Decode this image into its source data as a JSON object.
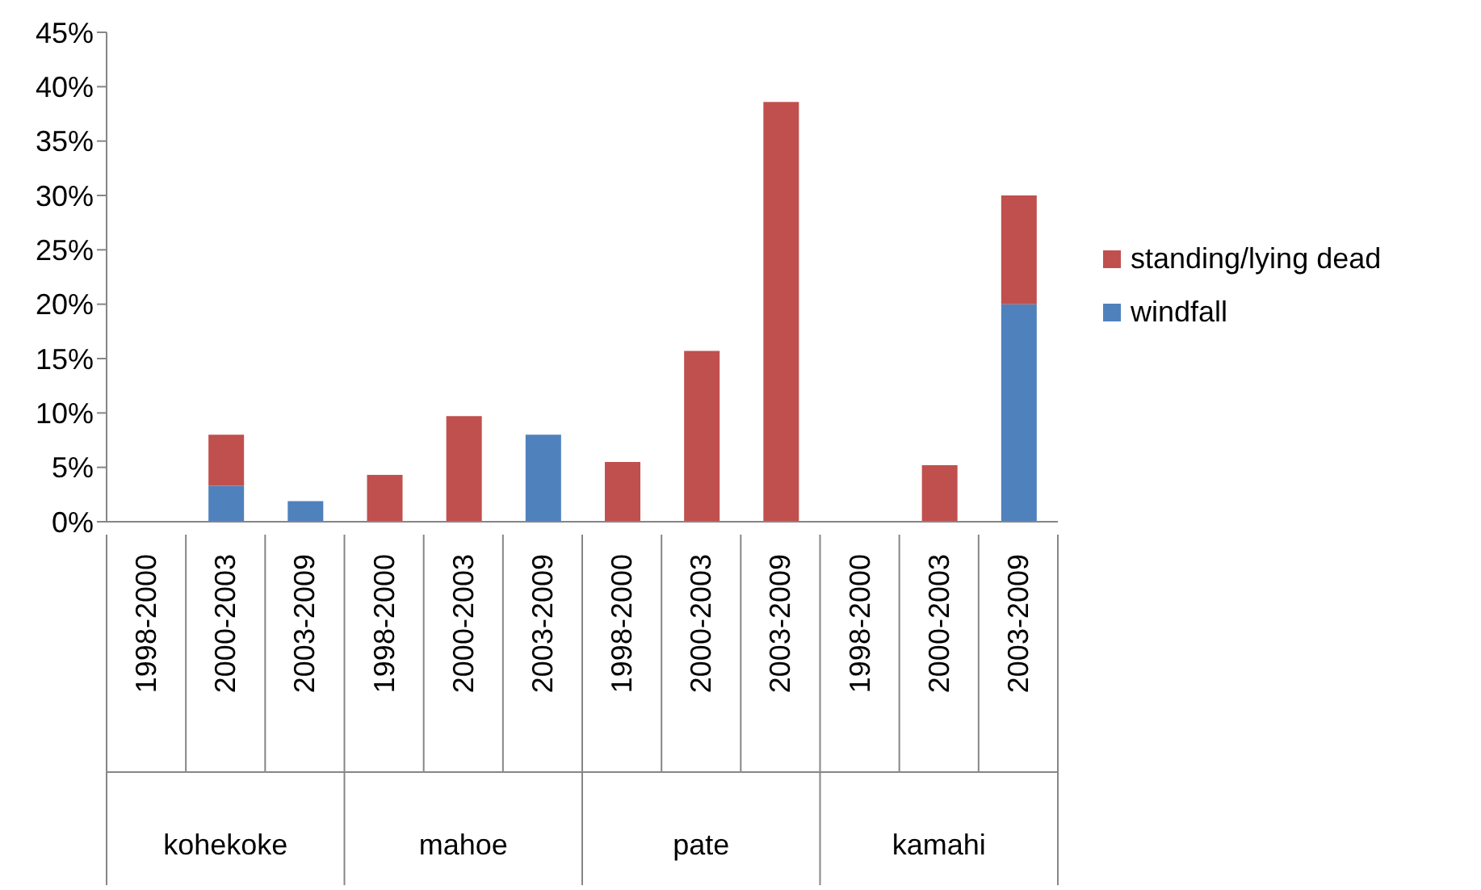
{
  "chart_data": {
    "type": "bar",
    "stacked": true,
    "categories": [
      "1998-2000",
      "2000-2003",
      "2003-2009",
      "1998-2000",
      "2000-2003",
      "2003-2009",
      "1998-2000",
      "2000-2003",
      "2003-2009",
      "1998-2000",
      "2000-2003",
      "2003-2009"
    ],
    "annotations": [
      "kohekoke",
      "mahoe",
      "pate",
      "kamahi"
    ],
    "series": [
      {
        "name": "windfall",
        "color": "#4f81bd",
        "values": [
          0,
          3.3,
          1.9,
          0,
          0,
          8.0,
          0,
          0,
          0,
          0,
          0,
          20.0
        ]
      },
      {
        "name": "standing/lying dead",
        "color": "#c0504d",
        "values": [
          0,
          4.7,
          0,
          4.3,
          9.7,
          0,
          5.5,
          15.7,
          38.6,
          0,
          5.2,
          10.0
        ]
      }
    ],
    "ylim": [
      0,
      45
    ],
    "yticks": [
      {
        "value": 0,
        "label": "0%"
      },
      {
        "value": 5,
        "label": "5%"
      },
      {
        "value": 10,
        "label": "10%"
      },
      {
        "value": 15,
        "label": "15%"
      },
      {
        "value": 20,
        "label": "20%"
      },
      {
        "value": 25,
        "label": "25%"
      },
      {
        "value": 30,
        "label": "30%"
      },
      {
        "value": 35,
        "label": "35%"
      },
      {
        "value": 40,
        "label": "40%"
      },
      {
        "value": 45,
        "label": "45%"
      }
    ],
    "grid": false,
    "legend": "right"
  }
}
